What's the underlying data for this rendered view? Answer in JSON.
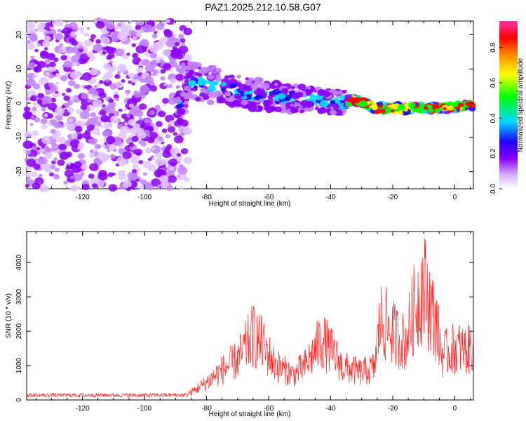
{
  "title": "PAZ1.2025.212.10.58.G07",
  "chart_data": [
    {
      "type": "heatmap",
      "xlabel": "Height of straight line (km)",
      "ylabel": "Frequency (Hz)",
      "xlim": [
        -138,
        6
      ],
      "ylim": [
        -25,
        24
      ],
      "xticks": [
        -120,
        -100,
        -80,
        -60,
        -40,
        -20,
        0
      ],
      "yticks": [
        -20,
        -10,
        0,
        10,
        20
      ],
      "colorbar": {
        "label": "Normalized spectral amplitude",
        "range": [
          0,
          0.95
        ],
        "ticks": [
          "0.0",
          "0.2",
          "0.4",
          "0.6",
          "0.8"
        ],
        "colormap": [
          "#ffffff",
          "#d9b3ff",
          "#8a00ff",
          "#1f00ff",
          "#00d9ff",
          "#00ff00",
          "#ffff00",
          "#ff8800",
          "#ff0000",
          "#ff33aa"
        ]
      },
      "ridge": {
        "description_points": [
          {
            "x": -88,
            "f": 6.0
          },
          {
            "x": -78,
            "f": 5.5
          },
          {
            "x": -68,
            "f": 3.0
          },
          {
            "x": -55,
            "f": 1.5
          },
          {
            "x": -45,
            "f": 1.0
          },
          {
            "x": -38,
            "f": 0.0
          },
          {
            "x": -32,
            "f": 1.0
          },
          {
            "x": -25,
            "f": -1.5
          },
          {
            "x": -15,
            "f": -1.5
          },
          {
            "x": -5,
            "f": -1.5
          },
          {
            "x": 5,
            "f": -0.5
          }
        ]
      }
    },
    {
      "type": "line",
      "xlabel": "Height of straight line (km)",
      "ylabel": "SNR (10 * v/v)",
      "xlim": [
        -138,
        6
      ],
      "ylim": [
        0,
        4900
      ],
      "xticks": [
        -120,
        -100,
        -80,
        -60,
        -40,
        -20,
        0
      ],
      "yticks": [
        0,
        1000,
        2000,
        3000,
        4000
      ],
      "series": [
        {
          "color": "#ff2a2a",
          "envelope": [
            {
              "x": -138,
              "y": 150
            },
            {
              "x": -90,
              "y": 160
            },
            {
              "x": -85,
              "y": 300
            },
            {
              "x": -80,
              "y": 700
            },
            {
              "x": -75,
              "y": 1200
            },
            {
              "x": -70,
              "y": 1600
            },
            {
              "x": -65,
              "y": 2600
            },
            {
              "x": -62,
              "y": 2200
            },
            {
              "x": -58,
              "y": 1400
            },
            {
              "x": -52,
              "y": 1000
            },
            {
              "x": -48,
              "y": 1400
            },
            {
              "x": -43,
              "y": 2400
            },
            {
              "x": -40,
              "y": 2000
            },
            {
              "x": -36,
              "y": 1300
            },
            {
              "x": -30,
              "y": 1100
            },
            {
              "x": -26,
              "y": 1300
            },
            {
              "x": -24,
              "y": 3200
            },
            {
              "x": -20,
              "y": 2700
            },
            {
              "x": -16,
              "y": 2300
            },
            {
              "x": -13,
              "y": 3700
            },
            {
              "x": -10,
              "y": 4600
            },
            {
              "x": -6,
              "y": 3000
            },
            {
              "x": -4,
              "y": 1800
            },
            {
              "x": 0,
              "y": 2100
            },
            {
              "x": 4,
              "y": 2000
            },
            {
              "x": 6,
              "y": 2300
            }
          ]
        }
      ]
    }
  ]
}
